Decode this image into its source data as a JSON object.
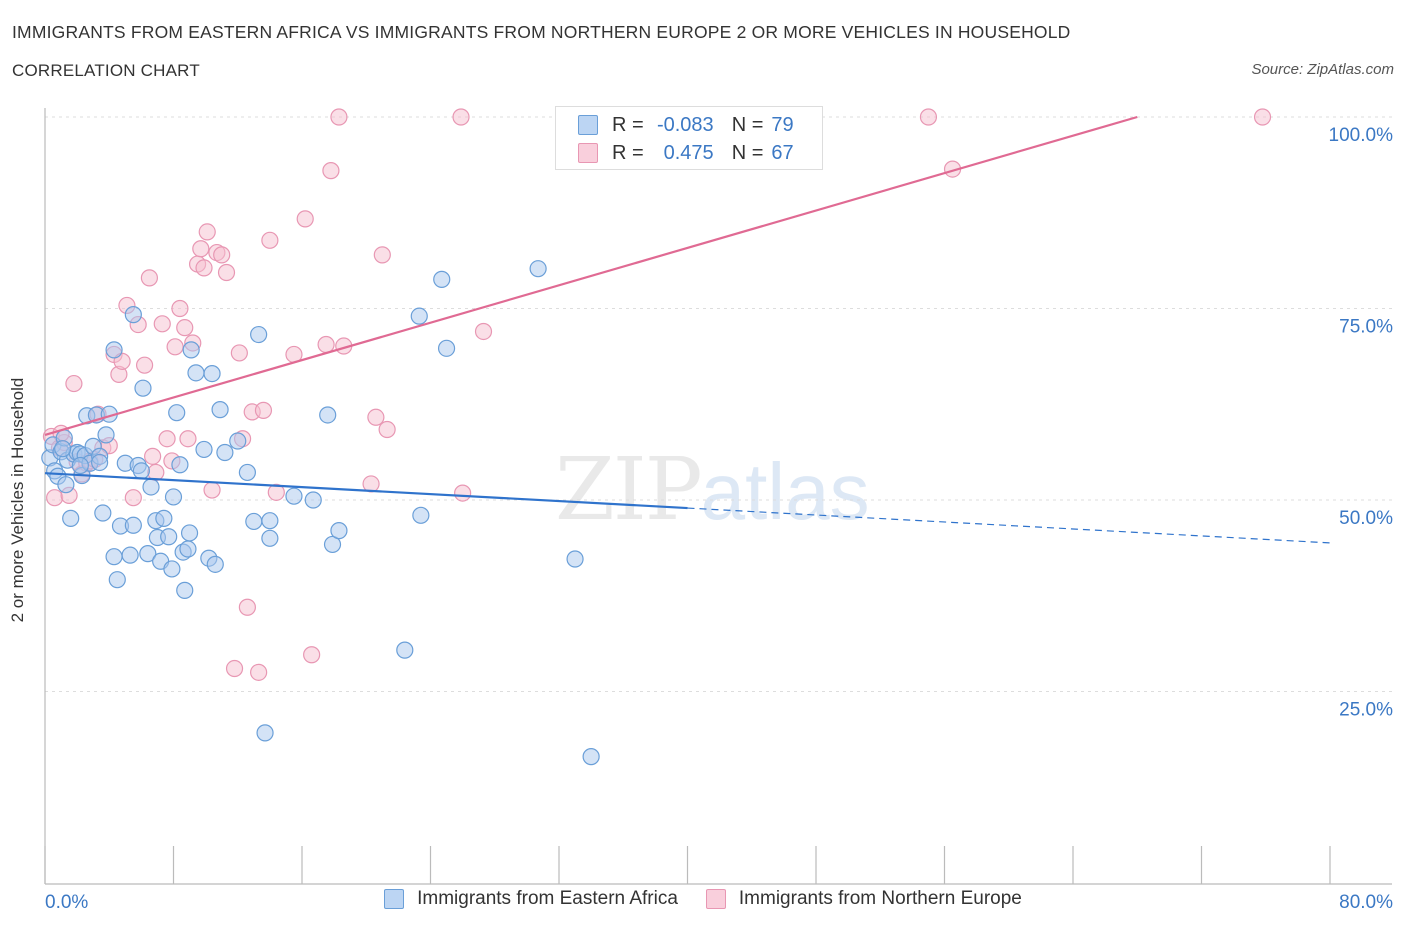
{
  "header": {
    "title": "IMMIGRANTS FROM EASTERN AFRICA VS IMMIGRANTS FROM NORTHERN EUROPE 2 OR MORE VEHICLES IN HOUSEHOLD",
    "subtitle": "CORRELATION CHART",
    "source": "Source: ZipAtlas.com"
  },
  "watermark": {
    "zip": "ZIP",
    "atlas": "atlas"
  },
  "legend_top": {
    "rows": [
      {
        "r_label": "R =",
        "r_value": "-0.083",
        "n_label": "N =",
        "n_value": "79"
      },
      {
        "r_label": "R =",
        "r_value": "0.475",
        "n_label": "N =",
        "n_value": "67"
      }
    ]
  },
  "legend_bottom": {
    "series_a": "Immigrants from Eastern Africa",
    "series_b": "Immigrants from Northern Europe"
  },
  "colors": {
    "blue_fill": "#a9c8ee",
    "blue_stroke": "#6a9fd8",
    "blue_line": "#2f73cc",
    "pink_fill": "#f6bfd0",
    "pink_stroke": "#e897b3",
    "pink_line": "#e06a93",
    "tick_text": "#3b78c4",
    "grid": "#dddddd"
  },
  "chart_data": {
    "type": "scatter",
    "title": "IMMIGRANTS FROM EASTERN AFRICA VS IMMIGRANTS FROM NORTHERN EUROPE 2 OR MORE VEHICLES IN HOUSEHOLD",
    "xlabel": "",
    "ylabel": "2 or more Vehicles in Household",
    "xlim": [
      0,
      80
    ],
    "ylim": [
      0,
      100
    ],
    "x_tick_labels": [
      "0.0%",
      "80.0%"
    ],
    "y_ticks": [
      25,
      50,
      75,
      100
    ],
    "y_tick_labels": [
      "25.0%",
      "50.0%",
      "75.0%",
      "100.0%"
    ],
    "grid": true,
    "legend_position": "bottom",
    "series": [
      {
        "name": "Immigrants from Eastern Africa",
        "R": -0.083,
        "N": 79,
        "trend": {
          "x": [
            0,
            40,
            80
          ],
          "y": [
            53.5,
            49.0,
            44.4
          ],
          "solid_until_x": 40
        },
        "points": [
          [
            0.3,
            55.5
          ],
          [
            0.5,
            57.2
          ],
          [
            0.6,
            53.8
          ],
          [
            0.8,
            53.1
          ],
          [
            1.0,
            56.3
          ],
          [
            1.2,
            58.1
          ],
          [
            1.3,
            52.0
          ],
          [
            1.4,
            55.2
          ],
          [
            1.6,
            47.6
          ],
          [
            1.8,
            56.0
          ],
          [
            2.0,
            56.2
          ],
          [
            2.2,
            56.0
          ],
          [
            2.3,
            53.2
          ],
          [
            2.5,
            55.8
          ],
          [
            2.6,
            61.0
          ],
          [
            2.8,
            54.8
          ],
          [
            3.0,
            57.0
          ],
          [
            3.2,
            61.1
          ],
          [
            3.4,
            55.7
          ],
          [
            3.6,
            48.3
          ],
          [
            3.8,
            58.5
          ],
          [
            4.0,
            61.2
          ],
          [
            4.3,
            42.6
          ],
          [
            4.5,
            39.6
          ],
          [
            4.7,
            46.6
          ],
          [
            5.0,
            54.8
          ],
          [
            5.3,
            42.8
          ],
          [
            5.5,
            46.7
          ],
          [
            5.8,
            54.5
          ],
          [
            6.0,
            53.8
          ],
          [
            6.1,
            64.6
          ],
          [
            6.4,
            43.0
          ],
          [
            6.6,
            51.7
          ],
          [
            6.9,
            47.3
          ],
          [
            7.0,
            45.1
          ],
          [
            7.2,
            42.0
          ],
          [
            7.4,
            47.6
          ],
          [
            7.7,
            45.2
          ],
          [
            7.9,
            41.0
          ],
          [
            8.0,
            50.4
          ],
          [
            8.2,
            61.4
          ],
          [
            8.4,
            54.6
          ],
          [
            8.6,
            43.2
          ],
          [
            8.7,
            38.2
          ],
          [
            8.9,
            43.6
          ],
          [
            9.0,
            45.7
          ],
          [
            9.1,
            69.6
          ],
          [
            9.4,
            66.6
          ],
          [
            9.9,
            56.6
          ],
          [
            10.2,
            42.4
          ],
          [
            10.4,
            66.5
          ],
          [
            10.6,
            41.6
          ],
          [
            10.9,
            61.8
          ],
          [
            11.2,
            56.2
          ],
          [
            12.0,
            57.7
          ],
          [
            12.6,
            53.6
          ],
          [
            13.0,
            47.2
          ],
          [
            13.3,
            71.6
          ],
          [
            13.7,
            19.6
          ],
          [
            14.0,
            47.3
          ],
          [
            14.0,
            45.0
          ],
          [
            15.5,
            50.5
          ],
          [
            16.7,
            50.0
          ],
          [
            17.6,
            61.1
          ],
          [
            17.9,
            44.2
          ],
          [
            18.3,
            46.0
          ],
          [
            22.4,
            30.4
          ],
          [
            23.3,
            74.0
          ],
          [
            23.4,
            48.0
          ],
          [
            24.7,
            78.8
          ],
          [
            25.0,
            69.8
          ],
          [
            30.7,
            80.2
          ],
          [
            33.0,
            42.3
          ],
          [
            34.0,
            16.5
          ],
          [
            5.5,
            74.2
          ],
          [
            4.3,
            69.6
          ],
          [
            2.2,
            54.5
          ],
          [
            1.1,
            56.7
          ],
          [
            3.4,
            54.9
          ]
        ]
      },
      {
        "name": "Immigrants from Northern Europe",
        "R": 0.475,
        "N": 67,
        "trend": {
          "x": [
            0,
            68
          ],
          "y": [
            58.5,
            100.0
          ]
        },
        "points": [
          [
            0.4,
            58.3
          ],
          [
            0.6,
            50.3
          ],
          [
            0.9,
            56.8
          ],
          [
            1.2,
            57.5
          ],
          [
            1.5,
            50.6
          ],
          [
            1.8,
            65.2
          ],
          [
            2.0,
            55.0
          ],
          [
            2.3,
            53.4
          ],
          [
            2.6,
            54.8
          ],
          [
            2.8,
            55.1
          ],
          [
            3.1,
            55.3
          ],
          [
            3.3,
            61.2
          ],
          [
            3.6,
            56.8
          ],
          [
            4.0,
            57.1
          ],
          [
            4.3,
            69.0
          ],
          [
            4.6,
            66.4
          ],
          [
            4.8,
            68.1
          ],
          [
            5.1,
            75.4
          ],
          [
            5.5,
            50.3
          ],
          [
            5.8,
            72.9
          ],
          [
            6.2,
            67.6
          ],
          [
            6.5,
            79.0
          ],
          [
            6.7,
            55.7
          ],
          [
            6.9,
            53.6
          ],
          [
            7.3,
            73.0
          ],
          [
            7.6,
            58.0
          ],
          [
            7.9,
            55.1
          ],
          [
            8.1,
            70.0
          ],
          [
            8.4,
            75.0
          ],
          [
            8.7,
            72.5
          ],
          [
            8.9,
            58.0
          ],
          [
            9.2,
            70.5
          ],
          [
            9.5,
            80.8
          ],
          [
            9.7,
            82.8
          ],
          [
            9.9,
            80.3
          ],
          [
            10.1,
            85.0
          ],
          [
            10.4,
            51.3
          ],
          [
            10.7,
            82.3
          ],
          [
            11.0,
            82.0
          ],
          [
            11.3,
            79.7
          ],
          [
            11.8,
            28.0
          ],
          [
            12.1,
            69.2
          ],
          [
            12.3,
            58.0
          ],
          [
            12.6,
            36.0
          ],
          [
            12.9,
            61.5
          ],
          [
            13.3,
            27.5
          ],
          [
            13.6,
            61.7
          ],
          [
            14.0,
            83.9
          ],
          [
            14.4,
            51.0
          ],
          [
            15.5,
            69.0
          ],
          [
            16.2,
            86.7
          ],
          [
            16.6,
            29.8
          ],
          [
            17.5,
            70.3
          ],
          [
            17.8,
            93.0
          ],
          [
            18.3,
            100.0
          ],
          [
            18.6,
            70.1
          ],
          [
            20.3,
            52.1
          ],
          [
            20.6,
            60.8
          ],
          [
            21.0,
            82.0
          ],
          [
            21.3,
            59.2
          ],
          [
            25.9,
            100.0
          ],
          [
            26.0,
            50.9
          ],
          [
            27.3,
            72.0
          ],
          [
            55.0,
            100.0
          ],
          [
            56.5,
            93.2
          ],
          [
            75.8,
            100.0
          ],
          [
            1.0,
            58.7
          ]
        ]
      }
    ]
  }
}
